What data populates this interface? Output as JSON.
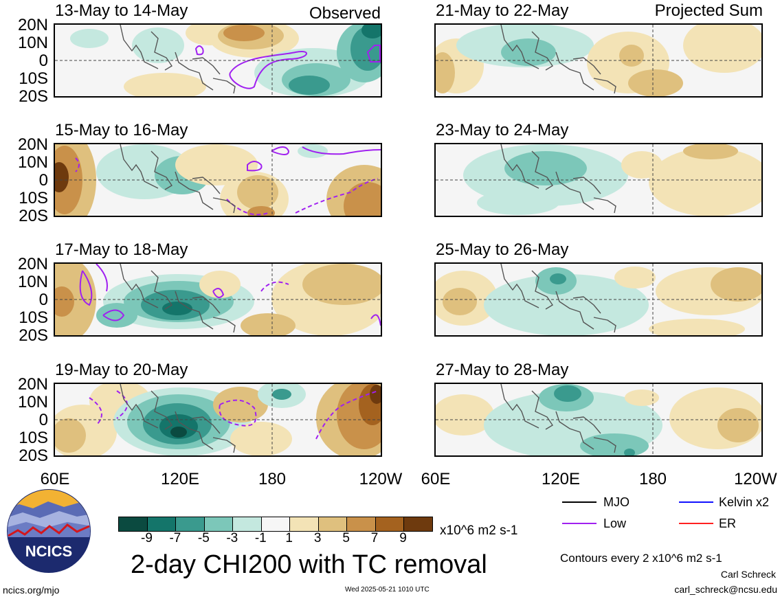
{
  "observed_label": "Observed",
  "projected_label": "Projected Sum",
  "left_panels": [
    {
      "title": "13-May to 14-May"
    },
    {
      "title": "15-May to 16-May"
    },
    {
      "title": "17-May to 18-May"
    },
    {
      "title": "19-May to 20-May"
    }
  ],
  "right_panels": [
    {
      "title": "21-May to 22-May"
    },
    {
      "title": "23-May to 24-May"
    },
    {
      "title": "25-May to 26-May"
    },
    {
      "title": "27-May to 28-May"
    }
  ],
  "y_ticks": [
    "20N",
    "10N",
    "0",
    "10S",
    "20S"
  ],
  "x_ticks": [
    "60E",
    "120E",
    "180",
    "120W"
  ],
  "x_ticks_right": [
    "60E",
    "120E",
    "180",
    "120W"
  ],
  "colorbar": {
    "labels": [
      "-9",
      "-7",
      "-5",
      "-3",
      "-1",
      "1",
      "3",
      "5",
      "7",
      "9"
    ],
    "colors": [
      "#0b4a40",
      "#14756a",
      "#3a9a8e",
      "#7cc7b9",
      "#c4e8df",
      "#f6f6f6",
      "#f3e3b6",
      "#dfc07e",
      "#c9914a",
      "#a4621f",
      "#6e3a0e"
    ],
    "units": "x10^6 m2 s-1"
  },
  "main_title": "2-day CHI200 with TC removal",
  "legend": {
    "mjo": "MJO",
    "kelvin": "Kelvin x2",
    "low": "Low",
    "er": "ER",
    "mjo_color": "#000000",
    "kelvin_color": "#1010ff",
    "low_color": "#a020f0",
    "er_color": "#ff2020"
  },
  "contour_note": "Contours every 2 x10^6 m2 s-1",
  "author": "Carl Schreck",
  "email": "carl_schreck@ncsu.edu",
  "site": "ncics.org/mjo",
  "timestamp": "Wed 2025-05-21 1010 UTC",
  "logo_text": "NCICS"
}
